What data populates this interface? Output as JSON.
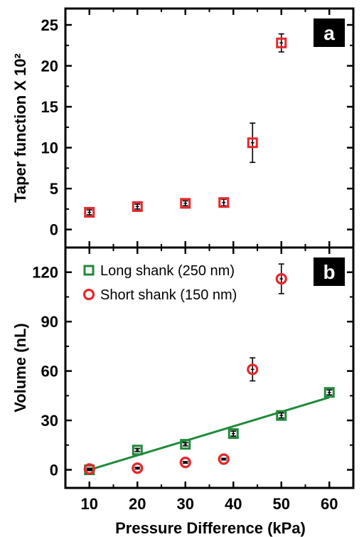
{
  "chart_data": [
    {
      "panel": "a",
      "type": "scatter",
      "ylabel": "Taper function X 10²",
      "xlim": [
        5,
        65
      ],
      "ylim": [
        -2.2,
        27
      ],
      "yticks": [
        0,
        5,
        10,
        15,
        20,
        25
      ],
      "series": [
        {
          "marker": "square",
          "color": "#e8262b",
          "x": [
            10,
            20,
            30,
            38,
            44,
            50
          ],
          "y": [
            2.1,
            2.8,
            3.2,
            3.3,
            10.6,
            22.8
          ],
          "yerr": [
            0.3,
            0.3,
            0.3,
            0.4,
            2.4,
            1.1
          ]
        }
      ]
    },
    {
      "panel": "b",
      "type": "scatter",
      "xlabel": "Pressure Difference  (kPa)",
      "ylabel": "Volume (nL)",
      "xlim": [
        5,
        65
      ],
      "ylim": [
        -11,
        135
      ],
      "xticks": [
        10,
        20,
        30,
        40,
        50,
        60
      ],
      "yticks": [
        0,
        30,
        60,
        90,
        120
      ],
      "legend_position": "top-left",
      "series": [
        {
          "name": "Long shank (250 nm)",
          "marker": "square",
          "color": "#1f8a3b",
          "x": [
            10,
            20,
            30,
            40,
            50,
            60
          ],
          "y": [
            0,
            12,
            15.5,
            22,
            33,
            47
          ],
          "yerr": [
            0.5,
            1,
            1,
            1.5,
            1.5,
            1.5
          ],
          "fit": {
            "x": [
              10,
              60
            ],
            "y": [
              0,
              44
            ]
          }
        },
        {
          "name": "Short shank (150 nm)",
          "marker": "circle",
          "color": "#e8262b",
          "x": [
            10,
            20,
            30,
            38,
            44,
            50
          ],
          "y": [
            0.5,
            1,
            4.5,
            6.5,
            61,
            116
          ],
          "yerr": [
            0.5,
            0.5,
            0.5,
            0.5,
            7,
            9
          ]
        }
      ]
    }
  ]
}
